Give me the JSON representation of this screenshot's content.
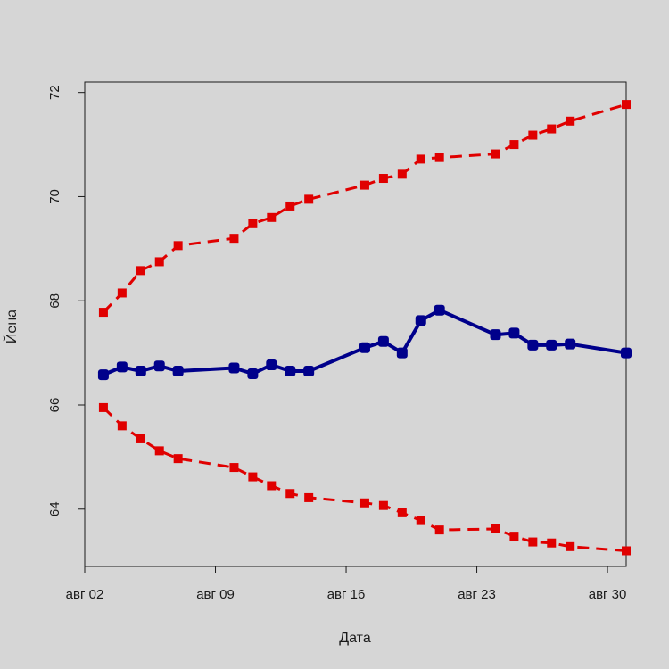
{
  "chart_data": {
    "type": "line",
    "xlabel": "Дата",
    "ylabel": "Йена",
    "ylim": [
      62.9,
      72.2
    ],
    "xlim": [
      "2023-08-02",
      "2023-08-31"
    ],
    "x_ticks": [
      {
        "date": "2023-08-02",
        "label": "авг 02"
      },
      {
        "date": "2023-08-09",
        "label": "авг 09"
      },
      {
        "date": "2023-08-16",
        "label": "авг 16"
      },
      {
        "date": "2023-08-23",
        "label": "авг 23"
      },
      {
        "date": "2023-08-30",
        "label": "авг 30"
      }
    ],
    "y_ticks": [
      64,
      66,
      68,
      70,
      72
    ],
    "x": [
      "2023-08-03",
      "2023-08-04",
      "2023-08-05",
      "2023-08-06",
      "2023-08-07",
      "2023-08-10",
      "2023-08-11",
      "2023-08-12",
      "2023-08-13",
      "2023-08-14",
      "2023-08-17",
      "2023-08-18",
      "2023-08-19",
      "2023-08-20",
      "2023-08-21",
      "2023-08-24",
      "2023-08-25",
      "2023-08-26",
      "2023-08-27",
      "2023-08-28",
      "2023-08-31"
    ],
    "series": [
      {
        "color": "#e00000",
        "style": "dashed",
        "values": [
          67.78,
          68.15,
          68.58,
          68.75,
          69.06,
          69.2,
          69.48,
          69.6,
          69.82,
          69.95,
          70.22,
          70.35,
          70.43,
          70.72,
          70.75,
          70.82,
          71.0,
          71.18,
          71.3,
          71.45,
          71.77
        ]
      },
      {
        "color": "#00008b",
        "style": "solid",
        "values": [
          66.58,
          66.73,
          66.65,
          66.75,
          66.65,
          66.71,
          66.6,
          66.77,
          66.65,
          66.65,
          67.1,
          67.22,
          67.0,
          67.62,
          67.82,
          67.35,
          67.38,
          67.15,
          67.15,
          67.17,
          67.0
        ]
      },
      {
        "color": "#e00000",
        "style": "dashed",
        "values": [
          65.95,
          65.6,
          65.35,
          65.12,
          64.97,
          64.8,
          64.62,
          64.45,
          64.3,
          64.22,
          64.12,
          64.07,
          63.93,
          63.78,
          63.6,
          63.62,
          63.48,
          63.37,
          63.35,
          63.28,
          63.2
        ]
      }
    ]
  }
}
